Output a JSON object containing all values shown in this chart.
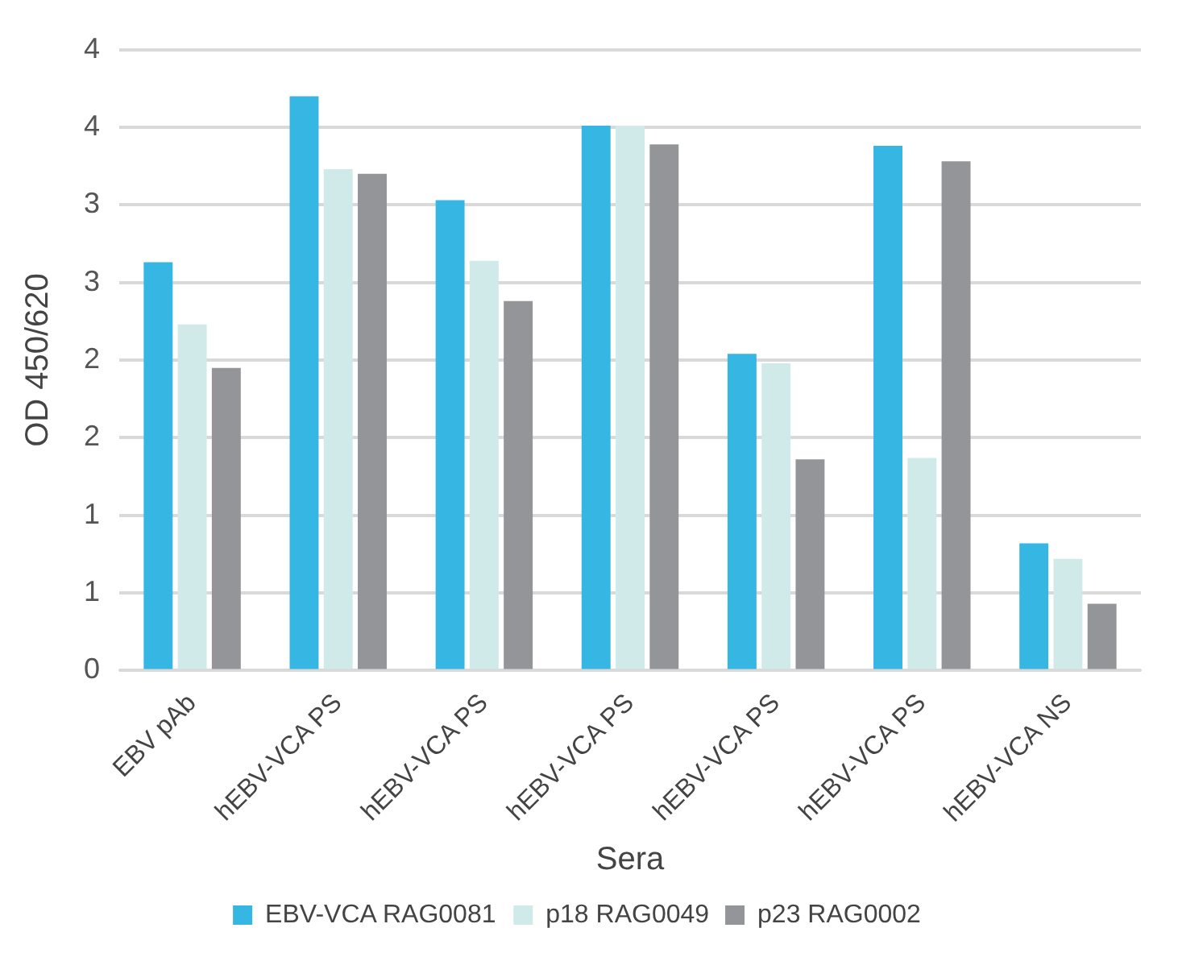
{
  "chart_data": {
    "type": "bar",
    "xlabel": "Sera",
    "ylabel": "OD 450/620",
    "categories": [
      "EBV pAb",
      "hEBV-VCA PS",
      "hEBV-VCA PS",
      "hEBV-VCA PS",
      "hEBV-VCA PS",
      "hEBV-VCA PS",
      "hEBV-VCA NS"
    ],
    "series": [
      {
        "name": "EBV-VCA RAG0081",
        "color": "#35b6e3",
        "values": [
          2.63,
          3.7,
          3.03,
          3.51,
          2.04,
          3.38,
          0.82
        ]
      },
      {
        "name": "p18 RAG0049",
        "color": "#d0eaea",
        "values": [
          2.23,
          3.23,
          2.64,
          3.51,
          1.98,
          1.37,
          0.72
        ]
      },
      {
        "name": "p23 RAG0002",
        "color": "#949598",
        "values": [
          1.95,
          3.2,
          2.38,
          3.39,
          1.36,
          3.28,
          0.43
        ]
      }
    ],
    "ylim": [
      0,
      4
    ],
    "yticks": [
      0,
      {
        "value": 0.5,
        "label": "1"
      },
      1,
      {
        "value": 1.5,
        "label": "2"
      },
      2,
      {
        "value": 2.5,
        "label": "3"
      },
      3,
      {
        "value": 3.5,
        "label": "4"
      },
      4
    ],
    "grid": "y",
    "legend": "bottom"
  }
}
